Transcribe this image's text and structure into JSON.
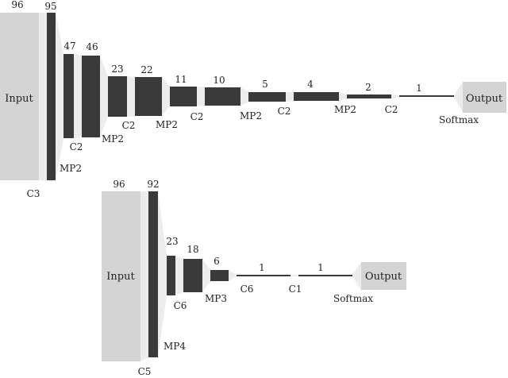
{
  "colors": {
    "box": "#d4d4d4",
    "layer": "#3a3a3a",
    "connector": "#ececec",
    "text": "#222222"
  },
  "networks": [
    {
      "input_label": "Input",
      "output_label": "Output",
      "layers": [
        {
          "size": "96",
          "op": "C3"
        },
        {
          "size": "95",
          "op": "MP2"
        },
        {
          "size": "47",
          "op": "C2"
        },
        {
          "size": "46",
          "op": "MP2"
        },
        {
          "size": "23",
          "op": "C2"
        },
        {
          "size": "22",
          "op": "MP2"
        },
        {
          "size": "11",
          "op": "C2"
        },
        {
          "size": "10",
          "op": "MP2"
        },
        {
          "size": "5",
          "op": "C2"
        },
        {
          "size": "4",
          "op": "MP2"
        },
        {
          "size": "2",
          "op": "C2"
        },
        {
          "size": "1",
          "op": "Softmax"
        }
      ]
    },
    {
      "input_label": "Input",
      "output_label": "Output",
      "layers": [
        {
          "size": "96",
          "op": "C5"
        },
        {
          "size": "92",
          "op": "MP4"
        },
        {
          "size": "23",
          "op": "C6"
        },
        {
          "size": "18",
          "op": "MP3"
        },
        {
          "size": "6",
          "op": "C6"
        },
        {
          "size": "1",
          "op": "C1"
        },
        {
          "size": "1",
          "op": "Softmax"
        }
      ]
    }
  ]
}
